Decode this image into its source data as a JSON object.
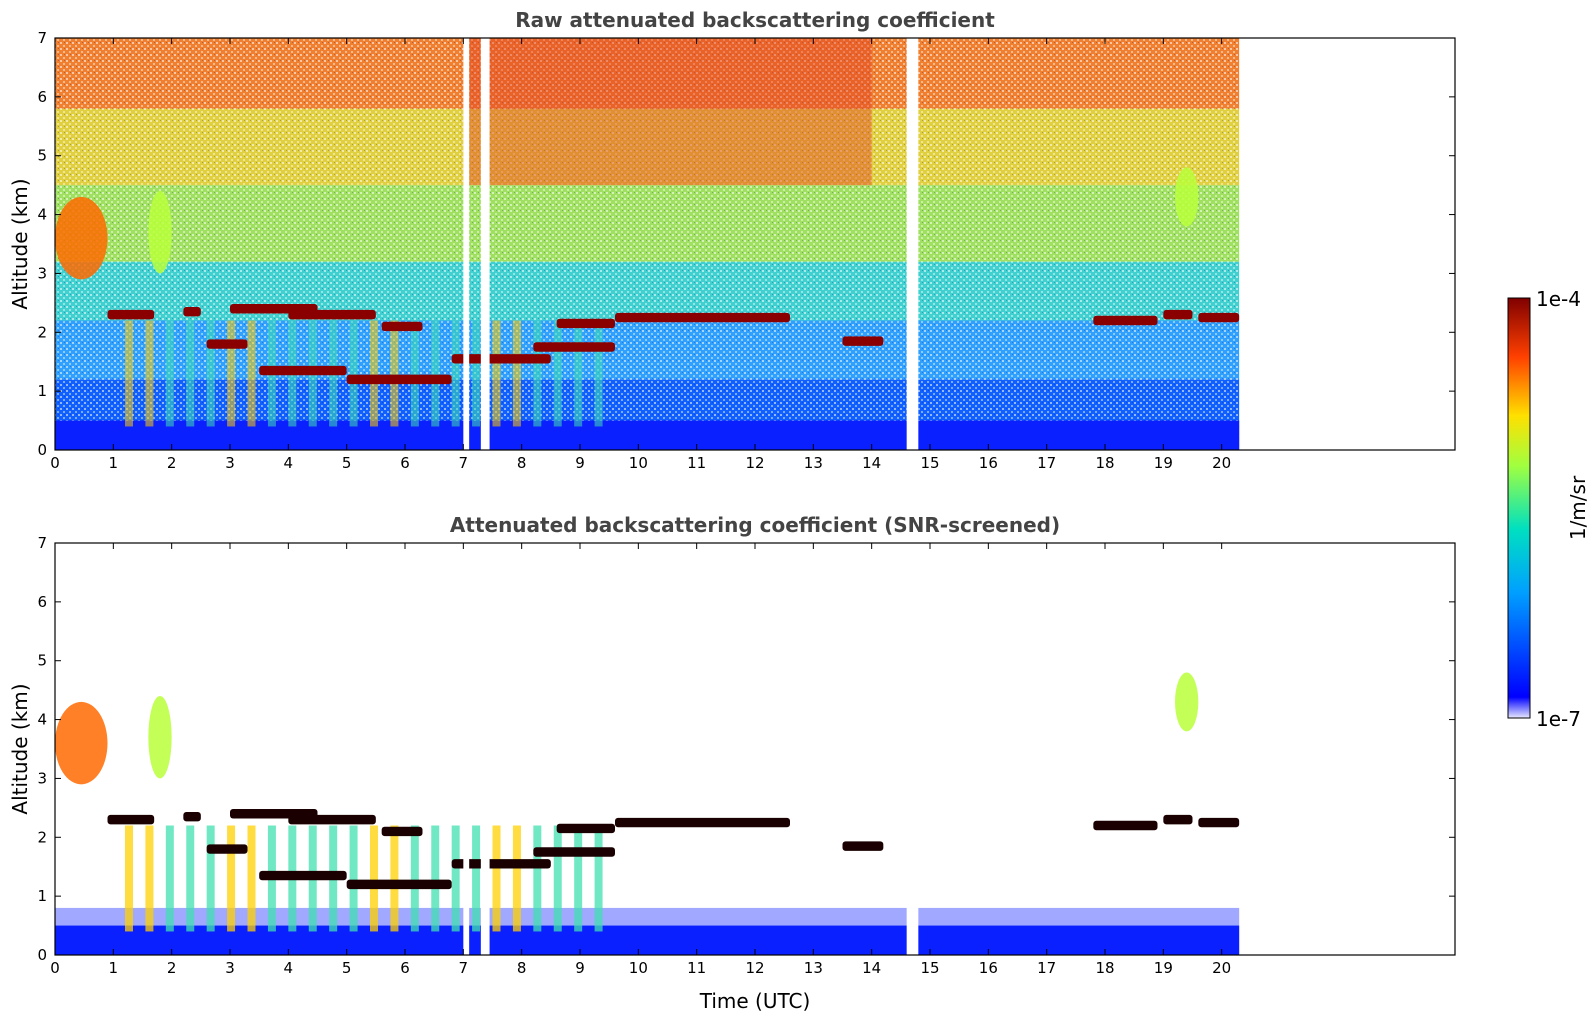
{
  "chart_data": [
    {
      "type": "heatmap",
      "title": "Raw attenuated backscattering coefficient",
      "xlabel": "",
      "ylabel": "Altitude (km)",
      "xlim": [
        0,
        24
      ],
      "ylim": [
        0,
        7
      ],
      "x_ticks": [
        "0",
        "1",
        "2",
        "3",
        "4",
        "5",
        "6",
        "7",
        "8",
        "9",
        "10",
        "11",
        "12",
        "13",
        "14",
        "15",
        "16",
        "17",
        "18",
        "19",
        "20"
      ],
      "y_ticks": [
        "0",
        "1",
        "2",
        "3",
        "4",
        "5",
        "6",
        "7"
      ],
      "data_end_time": 20.3,
      "screened": false,
      "grid": false,
      "features": {
        "near_surface_layer": {
          "top_km": 0.5,
          "level": "low"
        },
        "cloud_layers": [
          {
            "t_start": 0.9,
            "t_end": 1.7,
            "alt_km": 2.3,
            "level": "very-high"
          },
          {
            "t_start": 2.2,
            "t_end": 2.5,
            "alt_km": 2.35,
            "level": "very-high"
          },
          {
            "t_start": 2.6,
            "t_end": 3.3,
            "alt_km": 1.8,
            "level": "very-high"
          },
          {
            "t_start": 3.0,
            "t_end": 4.5,
            "alt_km": 2.4,
            "level": "very-high"
          },
          {
            "t_start": 3.5,
            "t_end": 5.0,
            "alt_km": 1.35,
            "level": "very-high"
          },
          {
            "t_start": 4.0,
            "t_end": 5.5,
            "alt_km": 2.3,
            "level": "very-high"
          },
          {
            "t_start": 5.0,
            "t_end": 6.8,
            "alt_km": 1.2,
            "level": "very-high"
          },
          {
            "t_start": 5.6,
            "t_end": 6.3,
            "alt_km": 2.1,
            "level": "very-high"
          },
          {
            "t_start": 6.8,
            "t_end": 8.5,
            "alt_km": 1.55,
            "level": "very-high"
          },
          {
            "t_start": 8.2,
            "t_end": 9.6,
            "alt_km": 1.75,
            "level": "very-high"
          },
          {
            "t_start": 8.6,
            "t_end": 9.6,
            "alt_km": 2.15,
            "level": "very-high"
          },
          {
            "t_start": 9.6,
            "t_end": 12.6,
            "alt_km": 2.25,
            "level": "very-high"
          },
          {
            "t_start": 13.5,
            "t_end": 14.2,
            "alt_km": 1.85,
            "level": "very-high"
          },
          {
            "t_start": 17.8,
            "t_end": 18.9,
            "alt_km": 2.2,
            "level": "very-high"
          },
          {
            "t_start": 19.0,
            "t_end": 19.5,
            "alt_km": 2.3,
            "level": "very-high"
          },
          {
            "t_start": 19.6,
            "t_end": 20.3,
            "alt_km": 2.25,
            "level": "very-high"
          }
        ],
        "aerosol_plumes": [
          {
            "t_start": 0.0,
            "t_end": 0.9,
            "alt_bottom_km": 2.9,
            "alt_top_km": 4.3,
            "level": "high"
          },
          {
            "t_start": 1.6,
            "t_end": 2.0,
            "alt_bottom_km": 3.0,
            "alt_top_km": 4.4,
            "level": "medium"
          },
          {
            "t_start": 19.2,
            "t_end": 19.6,
            "alt_bottom_km": 3.8,
            "alt_top_km": 4.8,
            "level": "medium"
          }
        ],
        "data_gaps": [
          {
            "t_start": 7.0,
            "t_end": 7.1
          },
          {
            "t_start": 7.3,
            "t_end": 7.45
          },
          {
            "t_start": 14.6,
            "t_end": 14.8
          }
        ]
      }
    },
    {
      "type": "heatmap",
      "title": "Attenuated backscattering coefficient (SNR-screened)",
      "xlabel": "Time (UTC)",
      "ylabel": "Altitude (km)",
      "xlim": [
        0,
        24
      ],
      "ylim": [
        0,
        7
      ],
      "x_ticks": [
        "0",
        "1",
        "2",
        "3",
        "4",
        "5",
        "6",
        "7",
        "8",
        "9",
        "10",
        "11",
        "12",
        "13",
        "14",
        "15",
        "16",
        "17",
        "18",
        "19",
        "20"
      ],
      "y_ticks": [
        "0",
        "1",
        "2",
        "3",
        "4",
        "5",
        "6",
        "7"
      ],
      "data_end_time": 20.3,
      "screened": true,
      "grid": false
    }
  ],
  "colorbar": {
    "label": "1/m/sr",
    "min_label": "1e-7",
    "max_label": "1e-4",
    "colormap": "jet",
    "scale": "log",
    "range": [
      1e-07,
      0.0001
    ]
  }
}
